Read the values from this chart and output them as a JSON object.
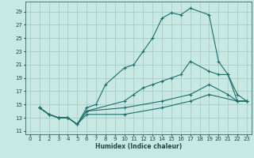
{
  "xlabel": "Humidex (Indice chaleur)",
  "bg_color": "#c8e8e4",
  "grid_color": "#a0c8c4",
  "line_color": "#1a6e6a",
  "ylim": [
    10.5,
    30.5
  ],
  "xlim": [
    -0.5,
    23.5
  ],
  "yticks": [
    11,
    13,
    15,
    17,
    19,
    21,
    23,
    25,
    27,
    29
  ],
  "xticks": [
    0,
    1,
    2,
    3,
    4,
    5,
    6,
    7,
    8,
    9,
    10,
    11,
    12,
    13,
    14,
    15,
    16,
    17,
    18,
    19,
    20,
    21,
    22,
    23
  ],
  "line1_x": [
    1,
    2,
    3,
    4,
    5,
    6,
    7,
    8,
    10,
    11,
    12,
    13,
    14,
    15,
    16,
    17,
    19,
    20,
    21,
    22,
    23
  ],
  "line1_y": [
    14.5,
    13.5,
    13.0,
    13.0,
    12.0,
    14.5,
    15.0,
    18.0,
    20.5,
    21.0,
    23.0,
    25.0,
    28.0,
    28.8,
    28.5,
    29.5,
    28.5,
    21.5,
    19.5,
    16.5,
    15.5
  ],
  "line2_x": [
    1,
    2,
    3,
    4,
    5,
    6,
    10,
    11,
    12,
    13,
    14,
    15,
    16,
    17,
    19,
    20,
    21,
    22,
    23
  ],
  "line2_y": [
    14.5,
    13.5,
    13.0,
    13.0,
    12.0,
    14.0,
    15.5,
    16.5,
    17.5,
    18.0,
    18.5,
    19.0,
    19.5,
    21.5,
    20.0,
    19.5,
    19.5,
    15.5,
    15.5
  ],
  "line3_x": [
    1,
    2,
    3,
    4,
    5,
    6,
    10,
    14,
    17,
    19,
    21,
    22,
    23
  ],
  "line3_y": [
    14.5,
    13.5,
    13.0,
    13.0,
    12.0,
    14.0,
    14.5,
    15.5,
    16.5,
    18.0,
    16.5,
    15.5,
    15.5
  ],
  "line4_x": [
    1,
    2,
    3,
    4,
    5,
    6,
    10,
    14,
    17,
    19,
    22,
    23
  ],
  "line4_y": [
    14.5,
    13.5,
    13.0,
    13.0,
    12.0,
    13.5,
    13.5,
    14.5,
    15.5,
    16.5,
    15.5,
    15.5
  ]
}
